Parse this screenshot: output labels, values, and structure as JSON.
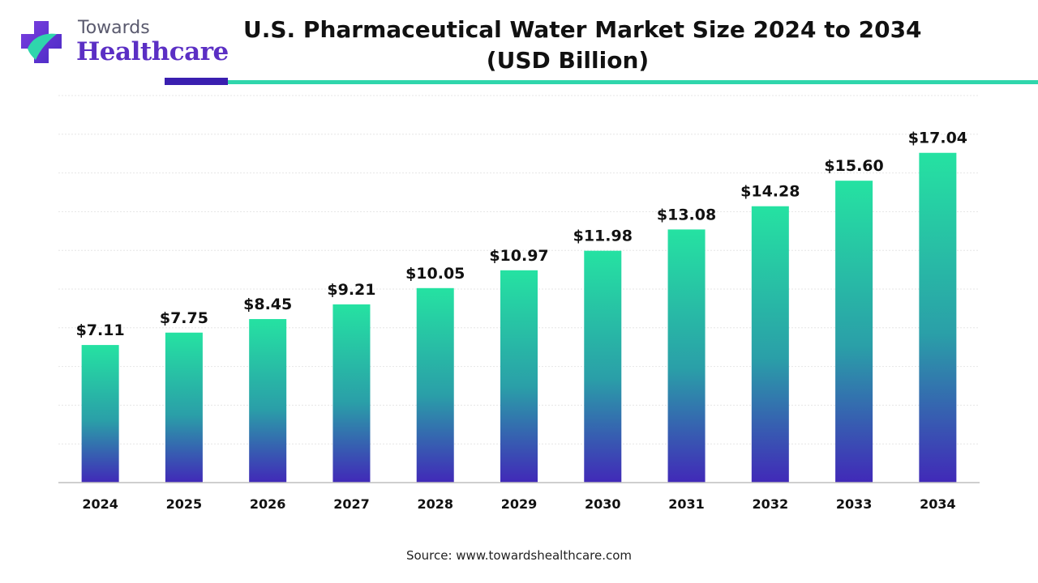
{
  "brand": {
    "line1": "Towards",
    "line2": "Healthcare",
    "icon": "medical-cross-icon",
    "colors": {
      "purple": "#5b2fc4",
      "teal": "#2fd6ac"
    }
  },
  "chart_data": {
    "type": "bar",
    "title": "U.S. Pharmaceutical Water Market Size 2024 to 2034",
    "subtitle": "(USD Billion)",
    "categories": [
      "2024",
      "2025",
      "2026",
      "2027",
      "2028",
      "2029",
      "2030",
      "2031",
      "2032",
      "2033",
      "2034"
    ],
    "values": [
      7.11,
      7.75,
      8.45,
      9.21,
      10.05,
      10.97,
      11.98,
      13.08,
      14.28,
      15.6,
      17.04
    ],
    "data_labels": [
      "$7.11",
      "$7.75",
      "$8.45",
      "$9.21",
      "$10.05",
      "$10.97",
      "$11.98",
      "$13.08",
      "$14.28",
      "$15.60",
      "$17.04"
    ],
    "ylim": [
      0,
      20
    ],
    "grid": true,
    "legend": "none",
    "bar_gradient": {
      "top": "#25e2a2",
      "middle": "#2a9fa8",
      "bottom": "#4129b8"
    }
  },
  "source": "Source: www.towardshealthcare.com"
}
